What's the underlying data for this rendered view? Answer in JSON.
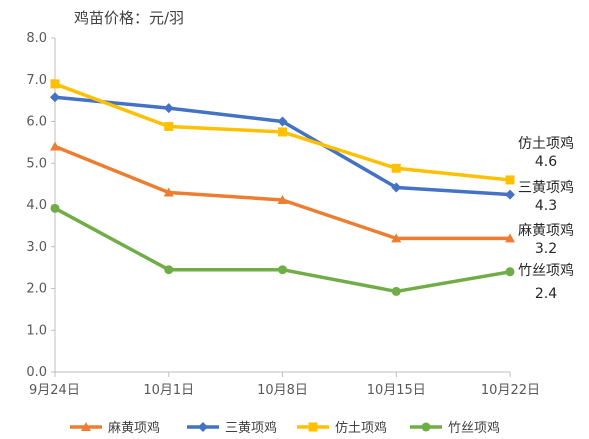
{
  "chart_data": {
    "type": "line",
    "title": "鸡苗价格：元/羽",
    "categories": [
      "9月24日",
      "10月1日",
      "10月8日",
      "10月15日",
      "10月22日"
    ],
    "ylim": [
      0,
      8
    ],
    "yticks": [
      "0.0",
      "1.0",
      "2.0",
      "3.0",
      "4.0",
      "5.0",
      "6.0",
      "7.0",
      "8.0"
    ],
    "grid": false,
    "legend_position": "bottom",
    "series": [
      {
        "name": "麻黄项鸡",
        "color": "#ED7D31",
        "marker": "triangle",
        "values": [
          5.4,
          4.3,
          4.12,
          3.2,
          3.2
        ]
      },
      {
        "name": "三黄项鸡",
        "color": "#4472C4",
        "marker": "diamond",
        "values": [
          6.58,
          6.32,
          6.0,
          4.42,
          4.25
        ]
      },
      {
        "name": "仿土项鸡",
        "color": "#FFC000",
        "marker": "square",
        "values": [
          6.9,
          5.88,
          5.75,
          4.88,
          4.6
        ]
      },
      {
        "name": "竹丝项鸡",
        "color": "#70AD47",
        "marker": "circle",
        "values": [
          3.92,
          2.45,
          2.45,
          1.93,
          2.4
        ]
      }
    ],
    "end_labels": [
      {
        "name": "仿土项鸡",
        "value": "4.6"
      },
      {
        "name": "三黄项鸡",
        "value": "4.3"
      },
      {
        "name": "麻黄项鸡",
        "value": "3.2"
      },
      {
        "name": "竹丝项鸡",
        "value": "2.4"
      }
    ]
  }
}
